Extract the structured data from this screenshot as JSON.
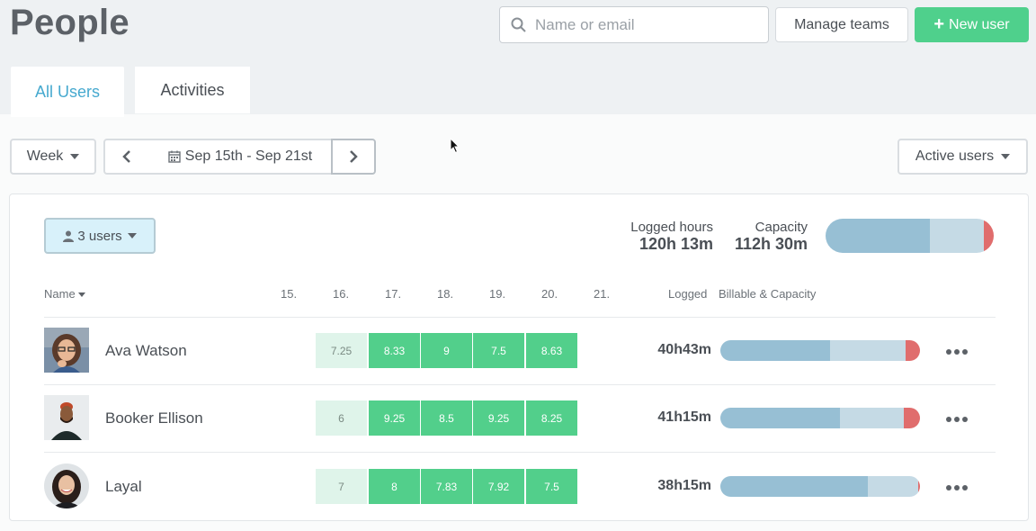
{
  "page": {
    "title": "People"
  },
  "header": {
    "search_placeholder": "Name or email",
    "manage_teams_label": "Manage teams",
    "new_user_label": "New user"
  },
  "tabs": [
    {
      "label": "All Users",
      "active": true
    },
    {
      "label": "Activities",
      "active": false
    }
  ],
  "toolbar": {
    "period_label": "Week",
    "date_range": "Sep 15th - Sep 21st",
    "filter_label": "Active users"
  },
  "summary": {
    "users_label": "3 users",
    "logged_hours_label": "Logged hours",
    "logged_hours_value": "120h 13m",
    "capacity_label": "Capacity",
    "capacity_value": "112h 30m",
    "bar": {
      "billable_fraction": 0.62,
      "logged_fraction": 0.94,
      "overflow_fraction": 0.06
    }
  },
  "table": {
    "name_header": "Name",
    "days": [
      "15.",
      "16.",
      "17.",
      "18.",
      "19.",
      "20.",
      "21."
    ],
    "logged_header": "Logged",
    "billable_header": "Billable & Capacity",
    "rows": [
      {
        "name": "Ava Watson",
        "hours": [
          "7.25",
          "8.33",
          "9",
          "7.5",
          "8.63"
        ],
        "logged": "40h43m",
        "bar": {
          "billable_fraction": 0.55,
          "logged_fraction": 0.93,
          "overflow_fraction": 0.07
        }
      },
      {
        "name": "Booker Ellison",
        "hours": [
          "6",
          "9.25",
          "8.5",
          "9.25",
          "8.25"
        ],
        "logged": "41h15m",
        "bar": {
          "billable_fraction": 0.6,
          "logged_fraction": 0.92,
          "overflow_fraction": 0.08
        }
      },
      {
        "name": "Layal",
        "hours": [
          "7",
          "8",
          "7.83",
          "7.92",
          "7.5"
        ],
        "logged": "38h15m",
        "bar": {
          "billable_fraction": 0.74,
          "logged_fraction": 0.99,
          "overflow_fraction": 0.01
        }
      }
    ]
  },
  "colors": {
    "accent_green": "#52cf8b",
    "light_green": "#dff4ea",
    "tab_active": "#46a9cf",
    "bar_billable": "#97bfd4",
    "bar_capacity": "#c5dae5",
    "bar_over": "#e06d6d"
  }
}
